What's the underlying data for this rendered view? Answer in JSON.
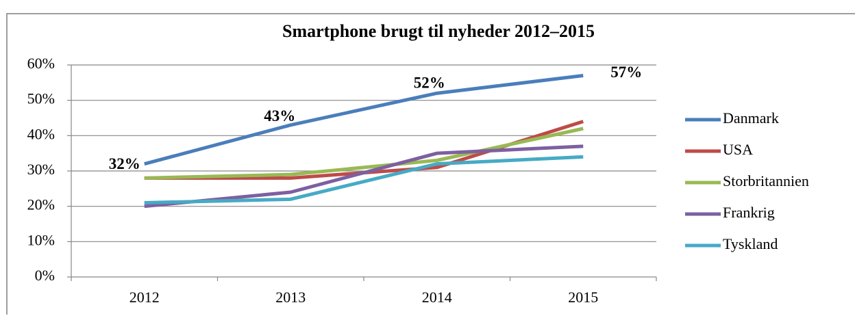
{
  "chart_data": {
    "type": "line",
    "title": "Smartphone brugt til nyheder 2012–2015",
    "categories": [
      "2012",
      "2013",
      "2014",
      "2015"
    ],
    "series": [
      {
        "name": "Danmark",
        "color": "#4a7ebb",
        "values": [
          32,
          43,
          52,
          57
        ],
        "value_labels": [
          "32%",
          "43%",
          "52%",
          "57%"
        ]
      },
      {
        "name": "USA",
        "color": "#be4b48",
        "values": [
          28,
          28,
          31,
          44
        ]
      },
      {
        "name": "Storbritannien",
        "color": "#98b954",
        "values": [
          28,
          29,
          33,
          42
        ]
      },
      {
        "name": "Frankrig",
        "color": "#7d60a0",
        "values": [
          20,
          24,
          35,
          37
        ]
      },
      {
        "name": "Tyskland",
        "color": "#46aac5",
        "values": [
          21,
          22,
          32,
          34
        ]
      }
    ],
    "ylim": [
      0,
      60
    ],
    "yticks": [
      {
        "value": 0,
        "label": "0%"
      },
      {
        "value": 10,
        "label": "10%"
      },
      {
        "value": 20,
        "label": "20%"
      },
      {
        "value": 30,
        "label": "30%"
      },
      {
        "value": 40,
        "label": "40%"
      },
      {
        "value": 50,
        "label": "50%"
      },
      {
        "value": 60,
        "label": "60%"
      }
    ],
    "grid": true,
    "legend": "right"
  }
}
